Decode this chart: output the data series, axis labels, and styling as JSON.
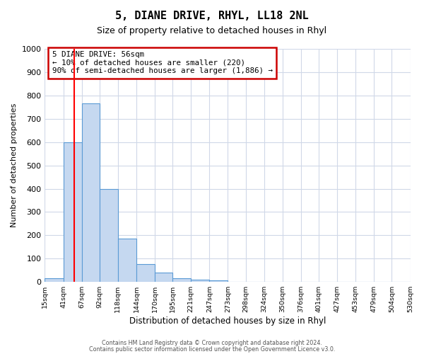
{
  "title": "5, DIANE DRIVE, RHYL, LL18 2NL",
  "subtitle": "Size of property relative to detached houses in Rhyl",
  "xlabel": "Distribution of detached houses by size in Rhyl",
  "ylabel": "Number of detached properties",
  "bin_labels": [
    "15sqm",
    "41sqm",
    "67sqm",
    "92sqm",
    "118sqm",
    "144sqm",
    "170sqm",
    "195sqm",
    "221sqm",
    "247sqm",
    "273sqm",
    "298sqm",
    "324sqm",
    "350sqm",
    "376sqm",
    "401sqm",
    "427sqm",
    "453sqm",
    "479sqm",
    "504sqm",
    "530sqm"
  ],
  "bar_values": [
    15,
    600,
    765,
    400,
    185,
    78,
    40,
    15,
    10,
    8,
    0,
    0,
    0,
    0,
    0,
    0,
    0,
    0,
    0,
    0
  ],
  "bar_color": "#c5d8f0",
  "bar_edge_color": "#5b9bd5",
  "property_line_x": 56,
  "bin_edges_values": [
    15,
    41,
    67,
    92,
    118,
    144,
    170,
    195,
    221,
    247,
    273,
    298,
    324,
    350,
    376,
    401,
    427,
    453,
    479,
    504,
    530
  ],
  "ylim": [
    0,
    1000
  ],
  "yticks": [
    0,
    100,
    200,
    300,
    400,
    500,
    600,
    700,
    800,
    900,
    1000
  ],
  "annotation_text": "5 DIANE DRIVE: 56sqm\n← 10% of detached houses are smaller (220)\n90% of semi-detached houses are larger (1,886) →",
  "annotation_box_color": "#ffffff",
  "annotation_box_edge": "#cc0000",
  "footer_line1": "Contains HM Land Registry data © Crown copyright and database right 2024.",
  "footer_line2": "Contains public sector information licensed under the Open Government Licence v3.0.",
  "bg_color": "#ffffff",
  "grid_color": "#d0d8e8"
}
